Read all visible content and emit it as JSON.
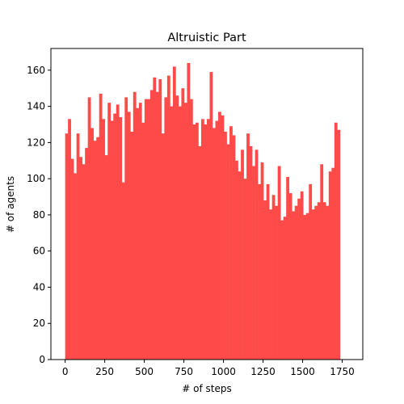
{
  "chart_data": {
    "type": "bar",
    "title": "Altruistic Part",
    "xlabel": "# of steps",
    "ylabel": "# of agents",
    "xlim": [
      -90,
      1880
    ],
    "ylim": [
      0,
      172
    ],
    "xticks": [
      0,
      250,
      500,
      750,
      1000,
      1250,
      1500,
      1750
    ],
    "yticks": [
      0,
      20,
      40,
      60,
      80,
      100,
      120,
      140,
      160
    ],
    "bar_color": "#ff4a4a",
    "grid": false,
    "legend": "none",
    "bin_width": 17.9,
    "x_start": 0,
    "values": [
      125,
      133,
      111,
      103,
      125,
      112,
      108,
      117,
      145,
      128,
      121,
      123,
      147,
      133,
      113,
      142,
      132,
      136,
      141,
      134,
      98,
      145,
      137,
      126,
      148,
      139,
      142,
      131,
      144,
      144,
      149,
      156,
      148,
      155,
      125,
      145,
      157,
      140,
      162,
      146,
      140,
      150,
      142,
      164,
      144,
      130,
      131,
      118,
      133,
      130,
      133,
      159,
      128,
      132,
      137,
      135,
      126,
      119,
      129,
      124,
      110,
      104,
      116,
      100,
      125,
      118,
      107,
      116,
      97,
      109,
      88,
      97,
      83,
      91,
      85,
      107,
      77,
      79,
      101,
      92,
      82,
      85,
      89,
      93,
      80,
      81,
      97,
      83,
      85,
      87,
      108,
      87,
      85,
      104,
      106,
      131,
      127
    ]
  }
}
